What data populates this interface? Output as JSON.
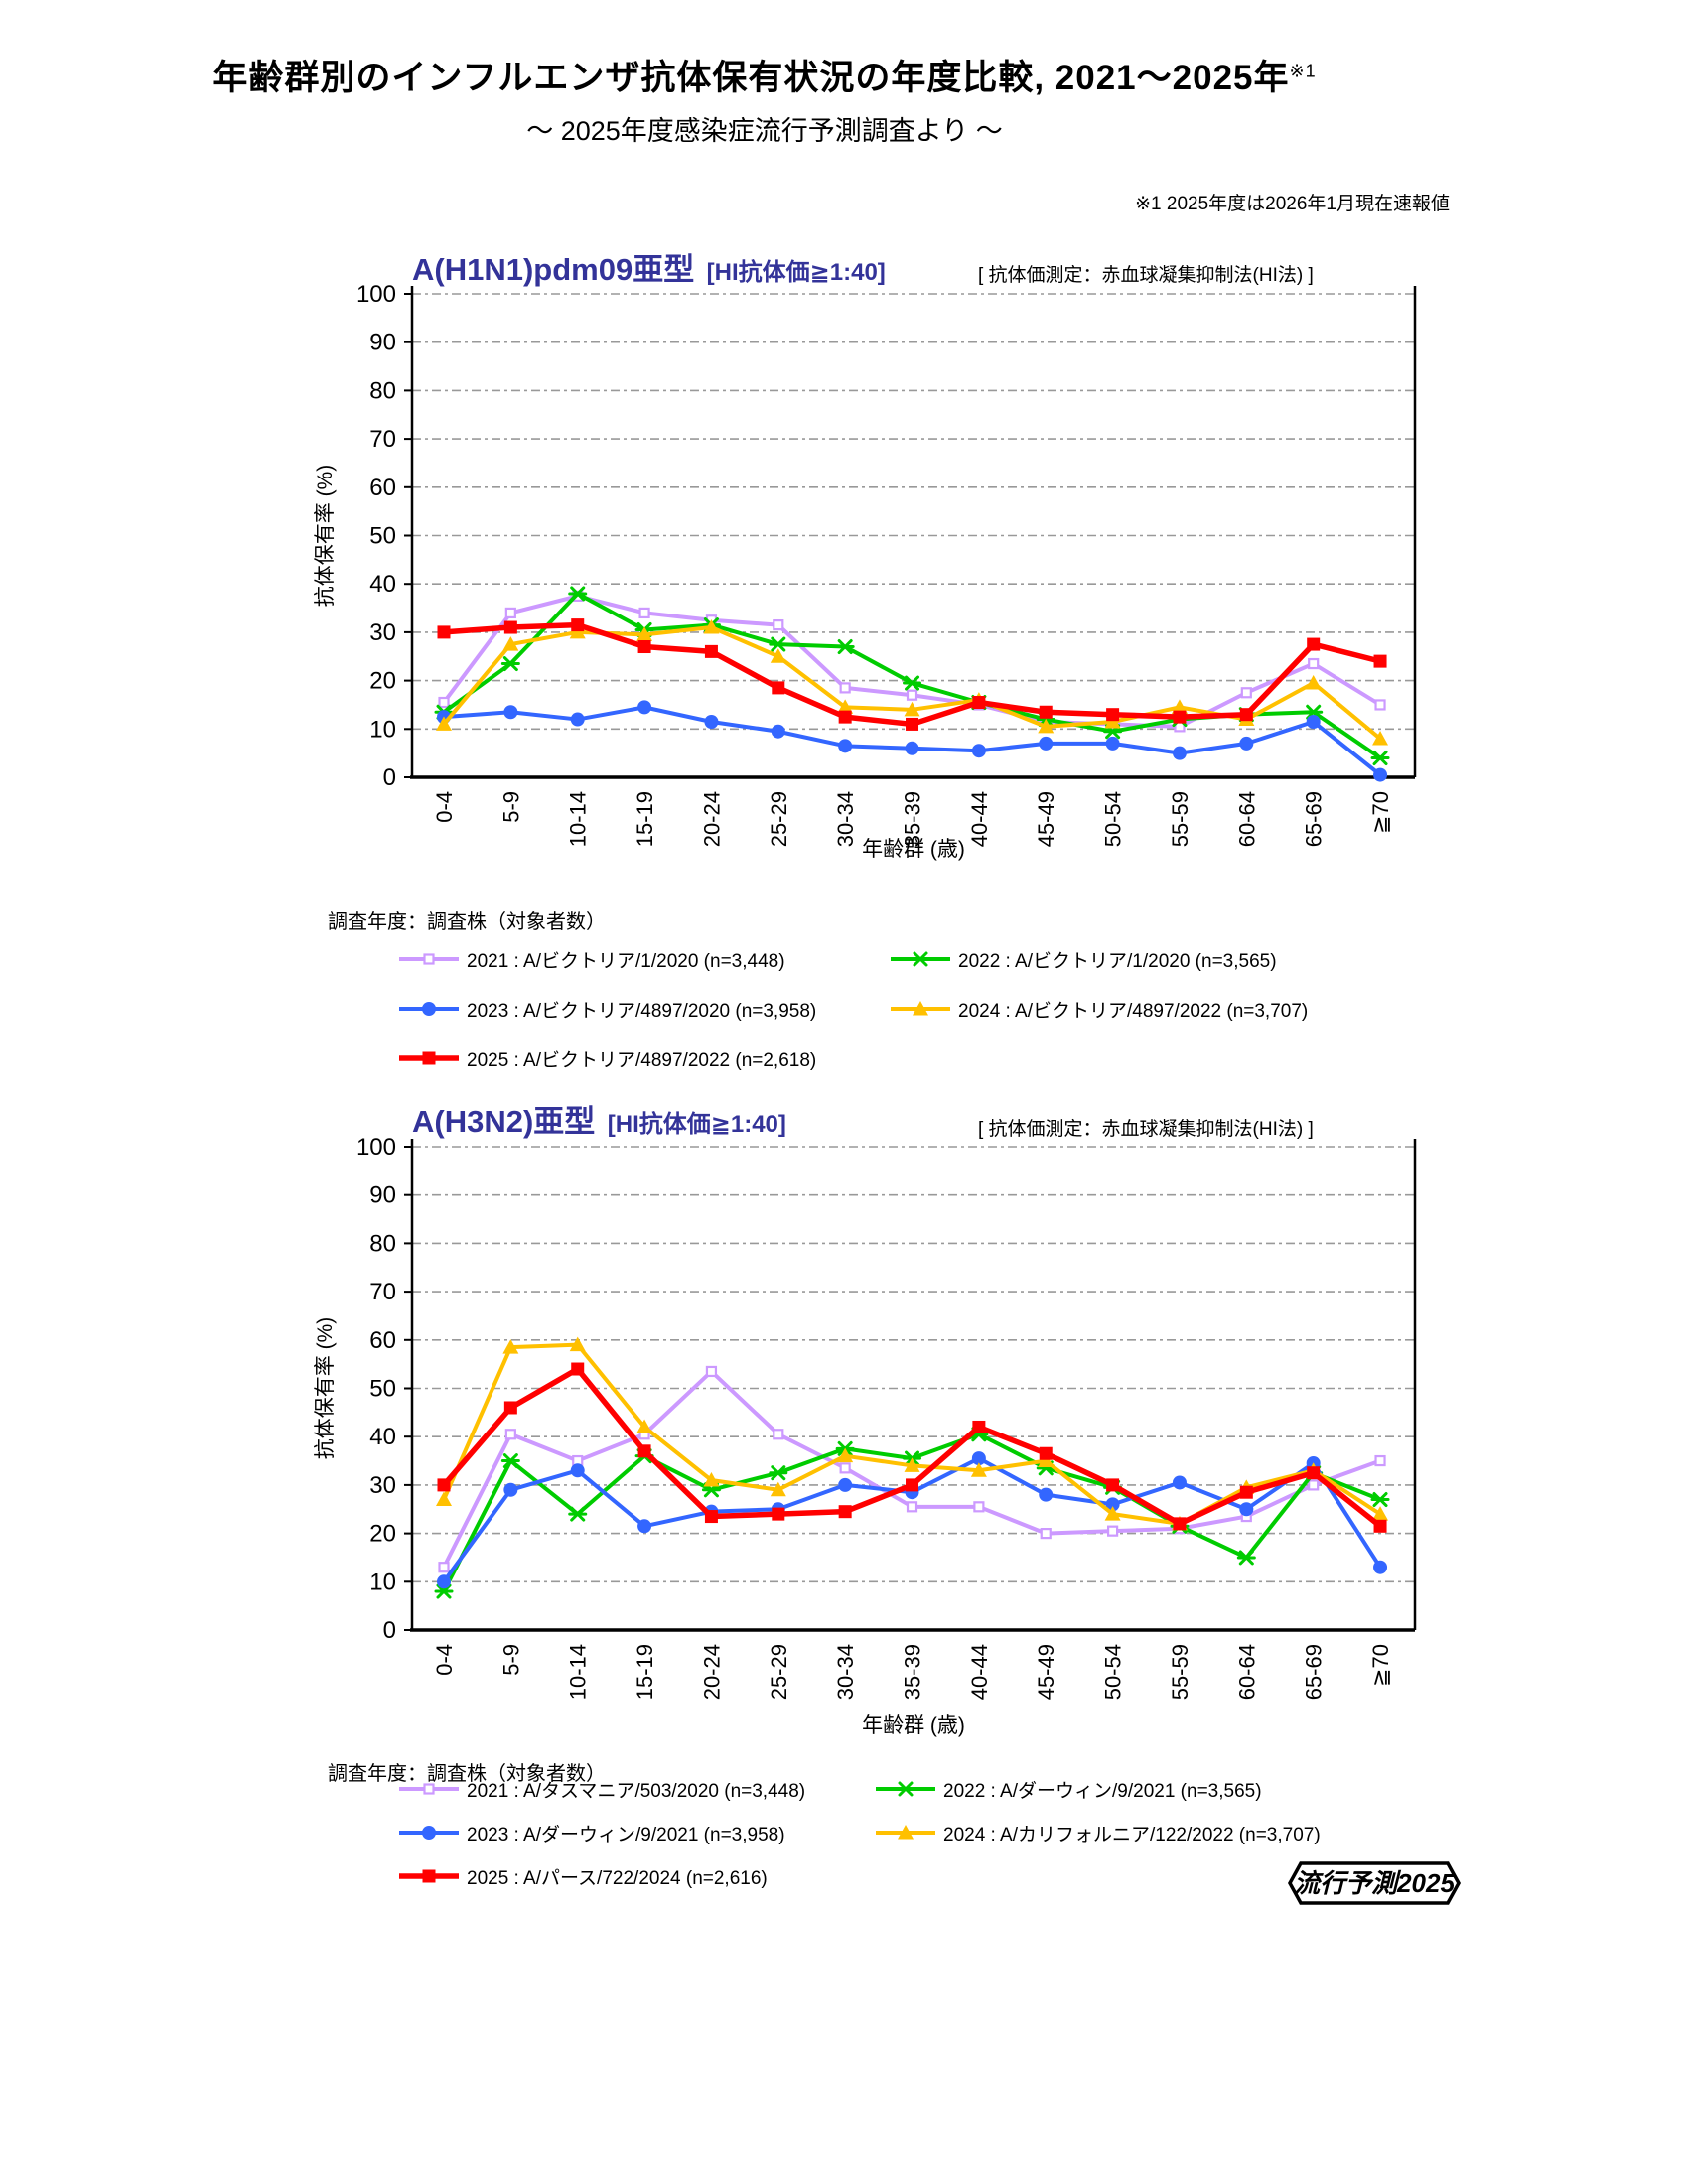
{
  "page": {
    "title": "年齢群別のインフルエンザ抗体保有状況の年度比較, 2021〜2025年",
    "title_note_ref": "※1",
    "subtitle": "〜 2025年度感染症流行予測調査より 〜",
    "note": "※1  2025年度は2026年1月現在速報値",
    "badge": "流行予測2025"
  },
  "chart_data": [
    {
      "type": "line",
      "title": "A(H1N1)pdm09亜型",
      "title_bracket": "[HI抗体価≧1:40]",
      "measure_note": "[ 抗体価測定：赤血球凝集抑制法(HI法) ]",
      "legend_header": "調査年度：調査株（対象者数）",
      "xlabel": "年齢群 (歳)",
      "ylabel": "抗体保有率 (%)",
      "ylim": [
        0,
        100
      ],
      "ytick_step": 10,
      "grid": "horizontal dash-dot gridlines every 10",
      "legend_position": "below chart, two columns",
      "categories": [
        "0-4",
        "5-9",
        "10-14",
        "15-19",
        "20-24",
        "25-29",
        "30-34",
        "35-39",
        "40-44",
        "45-49",
        "50-54",
        "55-59",
        "60-64",
        "65-69",
        "≧70"
      ],
      "series": [
        {
          "year": "2021",
          "label": "2021 : A/ビクトリア/1/2020 (n=3,448)",
          "color": "#CC99FF",
          "marker": "open-square",
          "values": [
            15.5,
            34,
            37.5,
            34,
            32.5,
            31.5,
            18.5,
            17,
            15,
            11.5,
            11,
            10.5,
            17.5,
            23.5,
            15
          ]
        },
        {
          "year": "2022",
          "label": "2022 : A/ビクトリア/1/2020 (n=3,565)",
          "color": "#00CC00",
          "marker": "asterisk",
          "values": [
            13.5,
            23.5,
            38,
            30.5,
            31.5,
            27.5,
            27,
            19.5,
            15.5,
            12,
            9.5,
            12,
            13,
            13.5,
            4
          ]
        },
        {
          "year": "2023",
          "label": "2023 : A/ビクトリア/4897/2020 (n=3,958)",
          "color": "#3366FF",
          "marker": "circle",
          "values": [
            12.5,
            13.5,
            12,
            14.5,
            11.5,
            9.5,
            6.5,
            6,
            5.5,
            7,
            7,
            5,
            7,
            11.5,
            0.5
          ]
        },
        {
          "year": "2024",
          "label": "2024 : A/ビクトリア/4897/2022 (n=3,707)",
          "color": "#FFC000",
          "marker": "triangle",
          "values": [
            11,
            27.5,
            30,
            29.5,
            31,
            25,
            14.5,
            14,
            16,
            10.5,
            11.5,
            14.5,
            12,
            19.5,
            8
          ]
        },
        {
          "year": "2025",
          "label": "2025 : A/ビクトリア/4897/2022 (n=2,618)",
          "color": "#FF0000",
          "marker": "square",
          "values": [
            30,
            31,
            31.5,
            27,
            26,
            18.5,
            12.5,
            11,
            15.5,
            13.5,
            13,
            12.5,
            13,
            27.5,
            24
          ]
        }
      ]
    },
    {
      "type": "line",
      "title": "A(H3N2)亜型",
      "title_bracket": "[HI抗体価≧1:40]",
      "measure_note": "[ 抗体価測定：赤血球凝集抑制法(HI法) ]",
      "legend_header": "調査年度：調査株（対象者数）",
      "xlabel": "年齢群 (歳)",
      "ylabel": "抗体保有率 (%)",
      "ylim": [
        0,
        100
      ],
      "ytick_step": 10,
      "grid": "horizontal dash-dot gridlines every 10",
      "legend_position": "below chart, two columns",
      "categories": [
        "0-4",
        "5-9",
        "10-14",
        "15-19",
        "20-24",
        "25-29",
        "30-34",
        "35-39",
        "40-44",
        "45-49",
        "50-54",
        "55-59",
        "60-64",
        "65-69",
        "≧70"
      ],
      "series": [
        {
          "year": "2021",
          "label": "2021 : A/タスマニア/503/2020 (n=3,448)",
          "color": "#CC99FF",
          "marker": "open-square",
          "values": [
            13,
            40.5,
            35,
            40.5,
            53.5,
            40.5,
            33.5,
            25.5,
            25.5,
            20,
            20.5,
            21,
            23.5,
            30,
            35
          ]
        },
        {
          "year": "2022",
          "label": "2022 : A/ダーウィン/9/2021 (n=3,565)",
          "color": "#00CC00",
          "marker": "asterisk",
          "values": [
            8,
            35,
            24,
            36,
            29,
            32.5,
            37.5,
            35.5,
            40.5,
            33.5,
            29.5,
            21.5,
            15,
            32.5,
            27
          ]
        },
        {
          "year": "2023",
          "label": "2023 : A/ダーウィン/9/2021 (n=3,958)",
          "color": "#3366FF",
          "marker": "circle",
          "values": [
            10,
            29,
            33,
            21.5,
            24.5,
            25,
            30,
            28.5,
            35.5,
            28,
            26,
            30.5,
            25,
            34.5,
            13
          ]
        },
        {
          "year": "2024",
          "label": "2024 : A/カリフォルニア/122/2022 (n=3,707)",
          "color": "#FFC000",
          "marker": "triangle",
          "values": [
            27,
            58.5,
            59,
            42,
            31,
            29,
            36,
            34,
            33,
            35,
            24,
            22,
            29.5,
            33,
            24
          ]
        },
        {
          "year": "2025",
          "label": "2025 : A/パース/722/2024 (n=2,616)",
          "color": "#FF0000",
          "marker": "square",
          "values": [
            30,
            46,
            54,
            37,
            23.5,
            24,
            24.5,
            30,
            42,
            36.5,
            30,
            22,
            28.5,
            32.5,
            21.5
          ]
        }
      ]
    }
  ]
}
